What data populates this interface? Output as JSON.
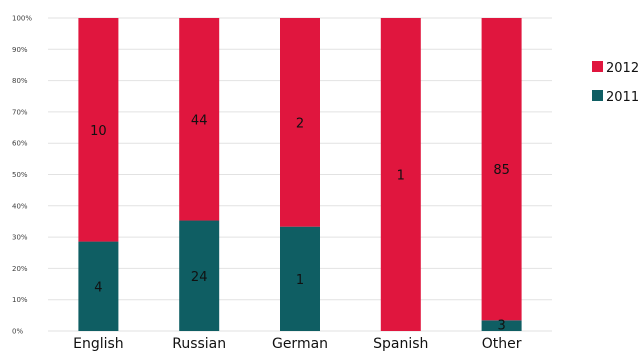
{
  "chart_data": {
    "type": "bar",
    "stacked": true,
    "normalized": true,
    "title": "",
    "xlabel": "",
    "ylabel": "",
    "ylim": [
      0,
      100
    ],
    "y_ticks": [
      "0%",
      "10%",
      "20%",
      "30%",
      "40%",
      "50%",
      "60%",
      "70%",
      "80%",
      "90%",
      "100%"
    ],
    "grid": true,
    "legend_position": "right",
    "categories": [
      "English",
      "Russian",
      "German",
      "Spanish",
      "Other"
    ],
    "series": [
      {
        "name": "2011",
        "color": "#0f5e63",
        "values": [
          4,
          24,
          1,
          0,
          3
        ],
        "labels": [
          "4",
          "24",
          "1",
          "",
          "3"
        ]
      },
      {
        "name": "2012",
        "color": "#e0163e",
        "values": [
          10,
          44,
          2,
          1,
          85
        ],
        "labels": [
          "10",
          "44",
          "2",
          "1",
          "85"
        ]
      }
    ]
  }
}
